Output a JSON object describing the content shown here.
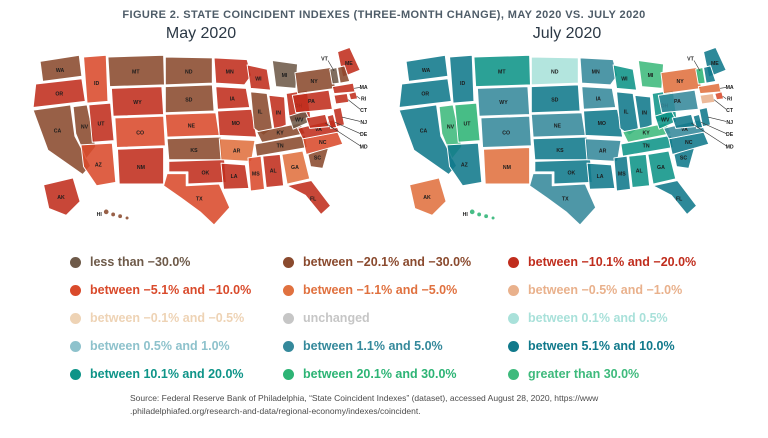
{
  "figure_title": "FIGURE 2. STATE COINCIDENT INDEXES (THREE-MONTH CHANGE), MAY 2020 VS. JULY 2020",
  "maps": {
    "may": {
      "title": "May 2020"
    },
    "july": {
      "title": "July 2020"
    }
  },
  "legend": {
    "items": [
      {
        "key": "lt_m30",
        "label": "less than −30.0%",
        "color": "#6e5a49"
      },
      {
        "key": "m20_m30",
        "label": "between −20.1% and −30.0%",
        "color": "#8a4a2e"
      },
      {
        "key": "m10_m20",
        "label": "between −10.1% and −20.0%",
        "color": "#c02d1d"
      },
      {
        "key": "m5_m10",
        "label": "between −5.1% and −10.0%",
        "color": "#d94a2b"
      },
      {
        "key": "m1_m5",
        "label": "between −1.1% and −5.0%",
        "color": "#e0713f"
      },
      {
        "key": "m05_m1",
        "label": "between −0.5% and −1.0%",
        "color": "#e9b18c"
      },
      {
        "key": "m01_m05",
        "label": "between −0.1% and −0.5%",
        "color": "#eed3b5"
      },
      {
        "key": "unchanged",
        "label": "unchanged",
        "color": "#c6c6c6"
      },
      {
        "key": "p01_p05",
        "label": "between 0.1% and 0.5%",
        "color": "#a9e1da"
      },
      {
        "key": "p05_p1",
        "label": "between 0.5% and 1.0%",
        "color": "#8ec2cc"
      },
      {
        "key": "p1_p5",
        "label": "between 1.1% and 5.0%",
        "color": "#35899b"
      },
      {
        "key": "p5_p10",
        "label": "between 5.1% and 10.0%",
        "color": "#10798b"
      },
      {
        "key": "p10_p20",
        "label": "between 10.1% and 20.0%",
        "color": "#0e9488"
      },
      {
        "key": "p20_p30",
        "label": "between 20.1% and 30.0%",
        "color": "#2db475"
      },
      {
        "key": "gt_p30",
        "label": "greater than 30.0%",
        "color": "#3eba7c"
      }
    ]
  },
  "chart_data": [
    {
      "type": "heatmap",
      "subtype": "us-choropleth",
      "title": "May 2020",
      "value_unit": "three-month % change category",
      "states": {
        "WA": "m20_m30",
        "OR": "m10_m20",
        "CA": "m20_m30",
        "NV": "m20_m30",
        "ID": "m5_m10",
        "MT": "m20_m30",
        "WY": "m10_m20",
        "UT": "m10_m20",
        "CO": "m5_m10",
        "AZ": "m5_m10",
        "NM": "m10_m20",
        "ND": "m20_m30",
        "SD": "m20_m30",
        "NE": "m5_m10",
        "KS": "m20_m30",
        "OK": "m10_m20",
        "TX": "m5_m10",
        "MN": "m10_m20",
        "IA": "m10_m20",
        "MO": "m10_m20",
        "AR": "m1_m5",
        "LA": "m10_m20",
        "WI": "m10_m20",
        "IL": "m20_m30",
        "MS": "m5_m10",
        "MI": "lt_m30",
        "IN": "m10_m20",
        "OH": "m10_m20",
        "KY": "m20_m30",
        "TN": "m20_m30",
        "AL": "m10_m20",
        "GA": "m1_m5",
        "FL": "m10_m20",
        "SC": "m20_m30",
        "NC": "m5_m10",
        "VA": "m10_m20",
        "WV": "lt_m30",
        "PA": "m10_m20",
        "NY": "m20_m30",
        "ME": "m10_m20",
        "VT": "lt_m30",
        "NH": "m20_m30",
        "MA": "m10_m20",
        "RI": "m10_m20",
        "CT": "m10_m20",
        "NJ": "m10_m20",
        "DE": "m10_m20",
        "MD": "m10_m20",
        "AK": "m10_m20",
        "HI": "m20_m30"
      }
    },
    {
      "type": "heatmap",
      "subtype": "us-choropleth",
      "title": "July 2020",
      "value_unit": "three-month % change category",
      "states": {
        "WA": "p5_p10",
        "OR": "p5_p10",
        "CA": "p5_p10",
        "NV": "gt_p30",
        "ID": "p5_p10",
        "MT": "p10_p20",
        "WY": "p1_p5",
        "UT": "p20_p30",
        "CO": "p1_p5",
        "AZ": "p5_p10",
        "NM": "m1_m5",
        "ND": "p01_p05",
        "SD": "p5_p10",
        "NE": "p1_p5",
        "KS": "p5_p10",
        "OK": "p5_p10",
        "TX": "p1_p5",
        "MN": "p1_p5",
        "IA": "p1_p5",
        "MO": "p5_p10",
        "AR": "p1_p5",
        "LA": "p5_p10",
        "WI": "p10_p20",
        "IL": "p5_p10",
        "MS": "p5_p10",
        "MI": "gt_p30",
        "IN": "p5_p10",
        "OH": "p10_p20",
        "KY": "gt_p30",
        "TN": "p10_p20",
        "AL": "p10_p20",
        "GA": "p10_p20",
        "FL": "p5_p10",
        "SC": "p5_p10",
        "NC": "p5_p10",
        "VA": "p1_p5",
        "WV": "p10_p20",
        "PA": "p1_p5",
        "NY": "m1_m5",
        "ME": "p5_p10",
        "VT": "p20_p30",
        "NH": "p5_p10",
        "MA": "m1_m5",
        "RI": "m5_m10",
        "CT": "m05_m1",
        "NJ": "p5_p10",
        "DE": "p5_p10",
        "MD": "p5_p10",
        "AK": "m1_m5",
        "HI": "p20_p30"
      }
    }
  ],
  "source": {
    "line1": "Source: Federal Reserve Bank of Philadelphia, “State Coincident Indexes” (dataset), accessed August 28, 2020, https://www",
    "line2": ".philadelphiafed.org/research-and-data/regional-economy/indexes/coincident."
  }
}
